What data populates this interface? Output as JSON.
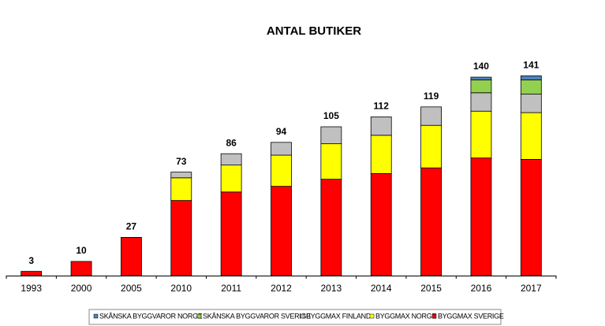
{
  "chart_data": {
    "type": "stacked-bar",
    "title": "ANTAL BUTIKER",
    "categories": [
      "1993",
      "2000",
      "2005",
      "2010",
      "2011",
      "2012",
      "2013",
      "2014",
      "2015",
      "2016",
      "2017"
    ],
    "series": [
      {
        "name": "BYGGMAX SVERIGE",
        "color": "#ff0000",
        "values": [
          3,
          10,
          27,
          53,
          59,
          63,
          68,
          72,
          76,
          83,
          82
        ]
      },
      {
        "name": "BYGGMAX NORGE",
        "color": "#ffff00",
        "values": [
          0,
          0,
          0,
          16,
          19,
          22,
          25,
          27,
          30,
          33,
          33
        ]
      },
      {
        "name": "BYGGMAX FINLAND",
        "color": "#c0c0c0",
        "values": [
          0,
          0,
          0,
          4,
          8,
          9,
          12,
          13,
          13,
          13,
          13
        ]
      },
      {
        "name": "SKÅNSKA BYGGVAROR SVERIGE",
        "color": "#92d050",
        "values": [
          0,
          0,
          0,
          0,
          0,
          0,
          0,
          0,
          0,
          9,
          10
        ]
      },
      {
        "name": "SKÅNSKA BYGGVAROR NORGE",
        "color": "#4f81bd",
        "values": [
          0,
          0,
          0,
          0,
          0,
          0,
          0,
          0,
          0,
          2,
          3
        ]
      }
    ],
    "totals": [
      3,
      10,
      27,
      73,
      86,
      94,
      105,
      112,
      119,
      140,
      141
    ],
    "ylim": [
      0,
      150
    ]
  }
}
